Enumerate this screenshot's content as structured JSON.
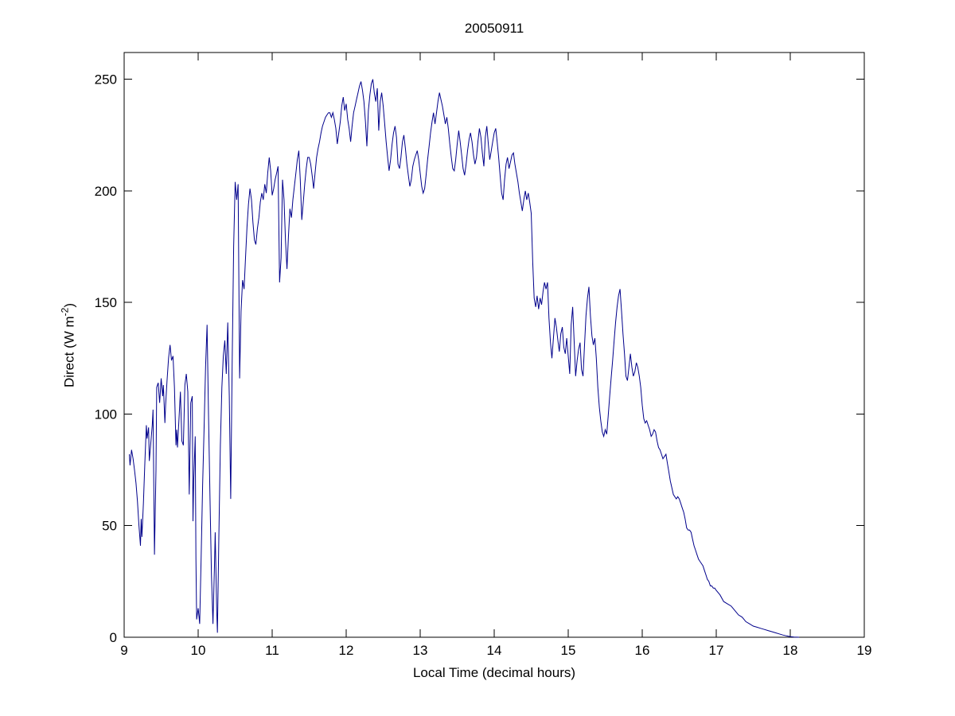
{
  "figure": {
    "background": "#ffffff"
  },
  "chart_data": {
    "type": "line",
    "title": "20050911",
    "xlabel": "Local Time (decimal hours)",
    "ylabel_prefix": "Direct (W m",
    "ylabel_superscript": "-2",
    "ylabel_suffix": ")",
    "xlim": [
      9,
      19
    ],
    "ylim": [
      0,
      262
    ],
    "x_ticks": [
      9,
      10,
      11,
      12,
      13,
      14,
      15,
      16,
      17,
      18,
      19
    ],
    "y_ticks": [
      0,
      50,
      100,
      150,
      200,
      250
    ],
    "grid": false,
    "legend": null,
    "line_color": "#00008B",
    "axis_color": "#000000",
    "points": [
      [
        9.07,
        82
      ],
      [
        9.08,
        77
      ],
      [
        9.1,
        84
      ],
      [
        9.12,
        80
      ],
      [
        9.14,
        75
      ],
      [
        9.16,
        69
      ],
      [
        9.18,
        61
      ],
      [
        9.2,
        50
      ],
      [
        9.22,
        41
      ],
      [
        9.23,
        53
      ],
      [
        9.24,
        45
      ],
      [
        9.26,
        60
      ],
      [
        9.28,
        78
      ],
      [
        9.3,
        95
      ],
      [
        9.31,
        89
      ],
      [
        9.33,
        94
      ],
      [
        9.34,
        79
      ],
      [
        9.36,
        87
      ],
      [
        9.38,
        95
      ],
      [
        9.39,
        102
      ],
      [
        9.41,
        37
      ],
      [
        9.43,
        75
      ],
      [
        9.44,
        112
      ],
      [
        9.46,
        114
      ],
      [
        9.48,
        105
      ],
      [
        9.5,
        116
      ],
      [
        9.52,
        108
      ],
      [
        9.53,
        113
      ],
      [
        9.55,
        96
      ],
      [
        9.56,
        104
      ],
      [
        9.58,
        115
      ],
      [
        9.6,
        125
      ],
      [
        9.62,
        131
      ],
      [
        9.64,
        124
      ],
      [
        9.66,
        126
      ],
      [
        9.68,
        112
      ],
      [
        9.7,
        86
      ],
      [
        9.71,
        93
      ],
      [
        9.72,
        85
      ],
      [
        9.74,
        97
      ],
      [
        9.76,
        110
      ],
      [
        9.78,
        88
      ],
      [
        9.8,
        86
      ],
      [
        9.82,
        113
      ],
      [
        9.84,
        118
      ],
      [
        9.86,
        110
      ],
      [
        9.88,
        64
      ],
      [
        9.9,
        105
      ],
      [
        9.92,
        108
      ],
      [
        9.93,
        52
      ],
      [
        9.94,
        70
      ],
      [
        9.96,
        90
      ],
      [
        9.97,
        35
      ],
      [
        9.98,
        8
      ],
      [
        10.0,
        13
      ],
      [
        10.02,
        6
      ],
      [
        10.04,
        35
      ],
      [
        10.06,
        68
      ],
      [
        10.08,
        93
      ],
      [
        10.1,
        121
      ],
      [
        10.12,
        140
      ],
      [
        10.14,
        100
      ],
      [
        10.16,
        62
      ],
      [
        10.18,
        28
      ],
      [
        10.2,
        6
      ],
      [
        10.22,
        32
      ],
      [
        10.23,
        47
      ],
      [
        10.25,
        12
      ],
      [
        10.26,
        2
      ],
      [
        10.28,
        45
      ],
      [
        10.3,
        86
      ],
      [
        10.32,
        112
      ],
      [
        10.34,
        126
      ],
      [
        10.36,
        133
      ],
      [
        10.38,
        118
      ],
      [
        10.4,
        141
      ],
      [
        10.42,
        108
      ],
      [
        10.44,
        62
      ],
      [
        10.46,
        125
      ],
      [
        10.48,
        175
      ],
      [
        10.5,
        204
      ],
      [
        10.52,
        196
      ],
      [
        10.54,
        203
      ],
      [
        10.56,
        116
      ],
      [
        10.58,
        146
      ],
      [
        10.6,
        160
      ],
      [
        10.62,
        156
      ],
      [
        10.64,
        170
      ],
      [
        10.66,
        184
      ],
      [
        10.68,
        194
      ],
      [
        10.7,
        201
      ],
      [
        10.72,
        196
      ],
      [
        10.74,
        186
      ],
      [
        10.76,
        178
      ],
      [
        10.78,
        176
      ],
      [
        10.8,
        183
      ],
      [
        10.82,
        188
      ],
      [
        10.84,
        195
      ],
      [
        10.86,
        199
      ],
      [
        10.88,
        196
      ],
      [
        10.9,
        203
      ],
      [
        10.92,
        199
      ],
      [
        10.94,
        208
      ],
      [
        10.96,
        215
      ],
      [
        10.98,
        209
      ],
      [
        11.0,
        198
      ],
      [
        11.02,
        201
      ],
      [
        11.04,
        205
      ],
      [
        11.06,
        208
      ],
      [
        11.08,
        211
      ],
      [
        11.1,
        159
      ],
      [
        11.12,
        170
      ],
      [
        11.14,
        205
      ],
      [
        11.16,
        196
      ],
      [
        11.18,
        178
      ],
      [
        11.2,
        165
      ],
      [
        11.22,
        180
      ],
      [
        11.24,
        192
      ],
      [
        11.26,
        188
      ],
      [
        11.28,
        196
      ],
      [
        11.3,
        202
      ],
      [
        11.32,
        208
      ],
      [
        11.34,
        214
      ],
      [
        11.36,
        218
      ],
      [
        11.38,
        205
      ],
      [
        11.4,
        187
      ],
      [
        11.42,
        195
      ],
      [
        11.44,
        203
      ],
      [
        11.46,
        210
      ],
      [
        11.48,
        215
      ],
      [
        11.5,
        215
      ],
      [
        11.52,
        212
      ],
      [
        11.54,
        207
      ],
      [
        11.56,
        201
      ],
      [
        11.58,
        208
      ],
      [
        11.6,
        215
      ],
      [
        11.62,
        219
      ],
      [
        11.64,
        222
      ],
      [
        11.66,
        226
      ],
      [
        11.68,
        229
      ],
      [
        11.7,
        231
      ],
      [
        11.72,
        233
      ],
      [
        11.74,
        234
      ],
      [
        11.76,
        235
      ],
      [
        11.78,
        235
      ],
      [
        11.8,
        233
      ],
      [
        11.82,
        235
      ],
      [
        11.84,
        232
      ],
      [
        11.86,
        228
      ],
      [
        11.88,
        221
      ],
      [
        11.9,
        226
      ],
      [
        11.92,
        231
      ],
      [
        11.94,
        238
      ],
      [
        11.96,
        242
      ],
      [
        11.98,
        236
      ],
      [
        12.0,
        239
      ],
      [
        12.02,
        232
      ],
      [
        12.04,
        228
      ],
      [
        12.06,
        222
      ],
      [
        12.08,
        229
      ],
      [
        12.1,
        235
      ],
      [
        12.12,
        238
      ],
      [
        12.14,
        241
      ],
      [
        12.16,
        244
      ],
      [
        12.18,
        247
      ],
      [
        12.2,
        249
      ],
      [
        12.22,
        245
      ],
      [
        12.24,
        240
      ],
      [
        12.26,
        231
      ],
      [
        12.28,
        220
      ],
      [
        12.3,
        236
      ],
      [
        12.32,
        243
      ],
      [
        12.34,
        248
      ],
      [
        12.36,
        250
      ],
      [
        12.38,
        244
      ],
      [
        12.4,
        240
      ],
      [
        12.42,
        246
      ],
      [
        12.44,
        227
      ],
      [
        12.46,
        240
      ],
      [
        12.48,
        244
      ],
      [
        12.5,
        238
      ],
      [
        12.52,
        230
      ],
      [
        12.54,
        222
      ],
      [
        12.56,
        215
      ],
      [
        12.58,
        209
      ],
      [
        12.6,
        214
      ],
      [
        12.62,
        221
      ],
      [
        12.64,
        226
      ],
      [
        12.66,
        229
      ],
      [
        12.68,
        224
      ],
      [
        12.7,
        212
      ],
      [
        12.72,
        210
      ],
      [
        12.74,
        215
      ],
      [
        12.76,
        222
      ],
      [
        12.78,
        225
      ],
      [
        12.8,
        219
      ],
      [
        12.82,
        212
      ],
      [
        12.84,
        207
      ],
      [
        12.86,
        202
      ],
      [
        12.88,
        205
      ],
      [
        12.9,
        211
      ],
      [
        12.92,
        214
      ],
      [
        12.94,
        216
      ],
      [
        12.96,
        218
      ],
      [
        12.98,
        214
      ],
      [
        13.0,
        208
      ],
      [
        13.02,
        202
      ],
      [
        13.04,
        199
      ],
      [
        13.06,
        201
      ],
      [
        13.08,
        207
      ],
      [
        13.1,
        214
      ],
      [
        13.12,
        220
      ],
      [
        13.14,
        226
      ],
      [
        13.16,
        231
      ],
      [
        13.18,
        235
      ],
      [
        13.2,
        230
      ],
      [
        13.22,
        235
      ],
      [
        13.24,
        240
      ],
      [
        13.26,
        244
      ],
      [
        13.28,
        241
      ],
      [
        13.3,
        238
      ],
      [
        13.32,
        234
      ],
      [
        13.34,
        230
      ],
      [
        13.36,
        233
      ],
      [
        13.38,
        228
      ],
      [
        13.4,
        221
      ],
      [
        13.42,
        215
      ],
      [
        13.44,
        210
      ],
      [
        13.46,
        209
      ],
      [
        13.48,
        214
      ],
      [
        13.5,
        221
      ],
      [
        13.52,
        227
      ],
      [
        13.54,
        222
      ],
      [
        13.56,
        216
      ],
      [
        13.58,
        210
      ],
      [
        13.6,
        207
      ],
      [
        13.62,
        212
      ],
      [
        13.64,
        218
      ],
      [
        13.66,
        223
      ],
      [
        13.68,
        226
      ],
      [
        13.7,
        222
      ],
      [
        13.72,
        216
      ],
      [
        13.74,
        212
      ],
      [
        13.76,
        215
      ],
      [
        13.78,
        222
      ],
      [
        13.8,
        228
      ],
      [
        13.82,
        224
      ],
      [
        13.84,
        217
      ],
      [
        13.86,
        211
      ],
      [
        13.88,
        224
      ],
      [
        13.9,
        229
      ],
      [
        13.92,
        221
      ],
      [
        13.94,
        214
      ],
      [
        13.96,
        218
      ],
      [
        13.98,
        222
      ],
      [
        14.0,
        226
      ],
      [
        14.02,
        228
      ],
      [
        14.04,
        222
      ],
      [
        14.06,
        215
      ],
      [
        14.08,
        207
      ],
      [
        14.1,
        199
      ],
      [
        14.12,
        196
      ],
      [
        14.14,
        205
      ],
      [
        14.16,
        212
      ],
      [
        14.18,
        215
      ],
      [
        14.2,
        210
      ],
      [
        14.22,
        213
      ],
      [
        14.24,
        216
      ],
      [
        14.26,
        217
      ],
      [
        14.28,
        212
      ],
      [
        14.3,
        208
      ],
      [
        14.32,
        204
      ],
      [
        14.34,
        199
      ],
      [
        14.36,
        195
      ],
      [
        14.38,
        191
      ],
      [
        14.4,
        196
      ],
      [
        14.42,
        200
      ],
      [
        14.44,
        196
      ],
      [
        14.46,
        199
      ],
      [
        14.48,
        195
      ],
      [
        14.5,
        190
      ],
      [
        14.52,
        168
      ],
      [
        14.54,
        152
      ],
      [
        14.56,
        148
      ],
      [
        14.58,
        153
      ],
      [
        14.6,
        147
      ],
      [
        14.62,
        152
      ],
      [
        14.64,
        149
      ],
      [
        14.66,
        155
      ],
      [
        14.68,
        159
      ],
      [
        14.7,
        156
      ],
      [
        14.72,
        159
      ],
      [
        14.74,
        143
      ],
      [
        14.76,
        132
      ],
      [
        14.78,
        125
      ],
      [
        14.8,
        134
      ],
      [
        14.82,
        143
      ],
      [
        14.84,
        139
      ],
      [
        14.86,
        133
      ],
      [
        14.88,
        128
      ],
      [
        14.9,
        136
      ],
      [
        14.92,
        139
      ],
      [
        14.94,
        130
      ],
      [
        14.96,
        127
      ],
      [
        14.98,
        134
      ],
      [
        15.0,
        126
      ],
      [
        15.02,
        118
      ],
      [
        15.04,
        140
      ],
      [
        15.06,
        148
      ],
      [
        15.08,
        133
      ],
      [
        15.1,
        117
      ],
      [
        15.12,
        124
      ],
      [
        15.14,
        129
      ],
      [
        15.16,
        132
      ],
      [
        15.18,
        120
      ],
      [
        15.2,
        117
      ],
      [
        15.22,
        131
      ],
      [
        15.24,
        144
      ],
      [
        15.26,
        152
      ],
      [
        15.28,
        157
      ],
      [
        15.3,
        144
      ],
      [
        15.32,
        135
      ],
      [
        15.34,
        131
      ],
      [
        15.36,
        134
      ],
      [
        15.38,
        125
      ],
      [
        15.4,
        112
      ],
      [
        15.42,
        103
      ],
      [
        15.44,
        97
      ],
      [
        15.46,
        92
      ],
      [
        15.48,
        90
      ],
      [
        15.5,
        93
      ],
      [
        15.52,
        91
      ],
      [
        15.54,
        99
      ],
      [
        15.56,
        108
      ],
      [
        15.58,
        116
      ],
      [
        15.6,
        124
      ],
      [
        15.62,
        133
      ],
      [
        15.64,
        141
      ],
      [
        15.66,
        148
      ],
      [
        15.68,
        153
      ],
      [
        15.7,
        156
      ],
      [
        15.72,
        146
      ],
      [
        15.74,
        136
      ],
      [
        15.76,
        127
      ],
      [
        15.78,
        117
      ],
      [
        15.8,
        115
      ],
      [
        15.82,
        121
      ],
      [
        15.84,
        127
      ],
      [
        15.86,
        121
      ],
      [
        15.88,
        117
      ],
      [
        15.9,
        119
      ],
      [
        15.92,
        123
      ],
      [
        15.94,
        121
      ],
      [
        15.96,
        117
      ],
      [
        15.98,
        112
      ],
      [
        16.0,
        104
      ],
      [
        16.02,
        98
      ],
      [
        16.04,
        96
      ],
      [
        16.06,
        97
      ],
      [
        16.08,
        95
      ],
      [
        16.1,
        93
      ],
      [
        16.12,
        90
      ],
      [
        16.14,
        91
      ],
      [
        16.16,
        93
      ],
      [
        16.18,
        92
      ],
      [
        16.2,
        88
      ],
      [
        16.22,
        85
      ],
      [
        16.24,
        84
      ],
      [
        16.26,
        82
      ],
      [
        16.28,
        80
      ],
      [
        16.3,
        81
      ],
      [
        16.32,
        82
      ],
      [
        16.34,
        78
      ],
      [
        16.36,
        74
      ],
      [
        16.38,
        70
      ],
      [
        16.4,
        67
      ],
      [
        16.42,
        64
      ],
      [
        16.44,
        63
      ],
      [
        16.46,
        62
      ],
      [
        16.48,
        63
      ],
      [
        16.5,
        62
      ],
      [
        16.52,
        60
      ],
      [
        16.54,
        58
      ],
      [
        16.56,
        56
      ],
      [
        16.58,
        53
      ],
      [
        16.6,
        49
      ],
      [
        16.62,
        48
      ],
      [
        16.64,
        48
      ],
      [
        16.66,
        47
      ],
      [
        16.68,
        44
      ],
      [
        16.7,
        41
      ],
      [
        16.72,
        39
      ],
      [
        16.74,
        37
      ],
      [
        16.76,
        35
      ],
      [
        16.78,
        34
      ],
      [
        16.8,
        33
      ],
      [
        16.82,
        32
      ],
      [
        16.84,
        30
      ],
      [
        16.86,
        28
      ],
      [
        16.88,
        26
      ],
      [
        16.9,
        25
      ],
      [
        16.92,
        23
      ],
      [
        16.94,
        23
      ],
      [
        16.96,
        22
      ],
      [
        16.98,
        22
      ],
      [
        17.0,
        21
      ],
      [
        17.05,
        19
      ],
      [
        17.1,
        16
      ],
      [
        17.15,
        15
      ],
      [
        17.2,
        14
      ],
      [
        17.25,
        12
      ],
      [
        17.3,
        10
      ],
      [
        17.35,
        9
      ],
      [
        17.4,
        7
      ],
      [
        17.45,
        6
      ],
      [
        17.5,
        5
      ],
      [
        17.55,
        4.5
      ],
      [
        17.6,
        4
      ],
      [
        17.65,
        3.5
      ],
      [
        17.7,
        3
      ],
      [
        17.75,
        2.5
      ],
      [
        17.8,
        2
      ],
      [
        17.85,
        1.5
      ],
      [
        17.9,
        1
      ],
      [
        17.95,
        0.6
      ],
      [
        18.0,
        0.3
      ],
      [
        18.05,
        0.1
      ],
      [
        18.12,
        0
      ]
    ]
  }
}
